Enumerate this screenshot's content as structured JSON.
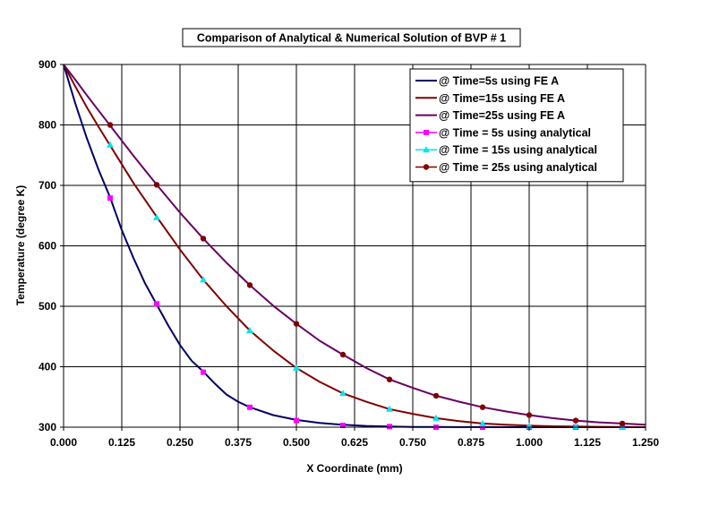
{
  "chart_data": {
    "type": "line",
    "title": "Comparison of Analytical & Numerical Solution of BVP # 1",
    "xlabel": "X Coordinate (mm)",
    "ylabel": "Temperature (degree K)",
    "xlim": [
      0,
      1.25
    ],
    "ylim": [
      300,
      900
    ],
    "xticks": [
      0,
      0.125,
      0.25,
      0.375,
      0.5,
      0.625,
      0.75,
      0.875,
      1.0,
      1.125,
      1.25
    ],
    "xtick_labels": [
      "0.000",
      "0.125",
      "0.250",
      "0.375",
      "0.500",
      "0.625",
      "0.750",
      "0.875",
      "1.000",
      "1.125",
      "1.250"
    ],
    "yticks": [
      300,
      400,
      500,
      600,
      700,
      800,
      900
    ],
    "ytick_labels": [
      "300",
      "400",
      "500",
      "600",
      "700",
      "800",
      "900"
    ],
    "grid": true,
    "legend_position": "top-right",
    "series": [
      {
        "name": "@ Time=5s using FE A",
        "kind": "line",
        "color": "#000066",
        "x": [
          0,
          0.025,
          0.05,
          0.075,
          0.1,
          0.125,
          0.15,
          0.175,
          0.2,
          0.225,
          0.25,
          0.275,
          0.3,
          0.325,
          0.35,
          0.375,
          0.4,
          0.45,
          0.5,
          0.55,
          0.6,
          0.65,
          0.7,
          0.75,
          0.8,
          0.9,
          1.0,
          1.1,
          1.25
        ],
        "y": [
          900,
          836,
          778,
          726,
          680,
          626,
          580,
          538,
          503,
          468,
          436,
          410,
          392,
          372,
          354,
          342,
          333,
          320,
          312,
          307,
          304,
          302,
          301,
          300.5,
          300.3,
          300.1,
          300,
          300,
          300
        ]
      },
      {
        "name": "@ Time=15s using FE A",
        "kind": "line",
        "color": "#800000",
        "x": [
          0,
          0.025,
          0.05,
          0.075,
          0.1,
          0.15,
          0.2,
          0.25,
          0.3,
          0.35,
          0.4,
          0.45,
          0.5,
          0.55,
          0.6,
          0.65,
          0.7,
          0.75,
          0.8,
          0.85,
          0.9,
          0.95,
          1.0,
          1.05,
          1.1,
          1.15,
          1.2,
          1.25
        ],
        "y": [
          900,
          864,
          829,
          797,
          766,
          704,
          648,
          594,
          544,
          500,
          460,
          427,
          398,
          375,
          356,
          342,
          330,
          322,
          315,
          310,
          306,
          304,
          302.5,
          301.5,
          301,
          300.6,
          300.3,
          300
        ]
      },
      {
        "name": "@ Time=25s using FE A",
        "kind": "line",
        "color": "#660066",
        "x": [
          0,
          0.025,
          0.05,
          0.075,
          0.1,
          0.15,
          0.2,
          0.25,
          0.3,
          0.35,
          0.4,
          0.45,
          0.5,
          0.55,
          0.6,
          0.65,
          0.7,
          0.75,
          0.8,
          0.85,
          0.9,
          0.95,
          1.0,
          1.05,
          1.1,
          1.15,
          1.2,
          1.25
        ],
        "y": [
          900,
          875,
          849,
          824,
          799,
          749,
          701,
          655,
          612,
          572,
          535,
          501,
          471,
          443,
          420,
          398,
          379,
          365,
          352,
          342,
          333,
          326,
          320,
          315,
          311,
          308,
          306,
          304
        ]
      },
      {
        "name": "@ Time = 5s using analytical",
        "kind": "markers",
        "marker": "square",
        "color": "#ff00ff",
        "x": [
          0.1,
          0.2,
          0.3,
          0.4,
          0.5,
          0.6,
          0.7,
          0.8,
          0.9,
          1.0,
          1.1,
          1.2
        ],
        "y": [
          679,
          504,
          391,
          333,
          311,
          303,
          301,
          300,
          300,
          300,
          300,
          300
        ]
      },
      {
        "name": "@ Time = 15s using analytical",
        "kind": "markers",
        "marker": "triangle",
        "color": "#00e5ee",
        "x": [
          0.1,
          0.2,
          0.3,
          0.4,
          0.5,
          0.6,
          0.7,
          0.8,
          0.9,
          1.0,
          1.1,
          1.2
        ],
        "y": [
          767,
          647,
          544,
          460,
          398,
          356,
          330,
          315,
          306,
          302,
          301,
          300
        ]
      },
      {
        "name": "@ Time = 25s using analytical",
        "kind": "markers",
        "marker": "circle",
        "color": "#800000",
        "x": [
          0.1,
          0.2,
          0.3,
          0.4,
          0.5,
          0.6,
          0.7,
          0.8,
          0.9,
          1.0,
          1.1,
          1.2
        ],
        "y": [
          800,
          701,
          612,
          535,
          471,
          420,
          379,
          352,
          333,
          320,
          311,
          306
        ]
      }
    ]
  }
}
